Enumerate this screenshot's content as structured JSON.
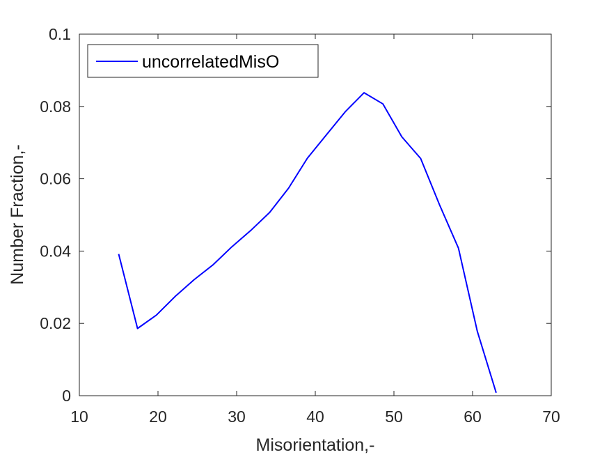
{
  "chart_data": {
    "type": "line",
    "xlabel": "Misorientation,-",
    "ylabel": "Number Fraction,-",
    "xlim": [
      10,
      70
    ],
    "ylim": [
      0,
      0.1
    ],
    "xticks": [
      10,
      20,
      30,
      40,
      50,
      60,
      70
    ],
    "yticks": [
      0,
      0.02,
      0.04,
      0.06,
      0.08,
      0.1
    ],
    "xtick_labels": [
      "10",
      "20",
      "30",
      "40",
      "50",
      "60",
      "70"
    ],
    "ytick_labels": [
      "0",
      "0.02",
      "0.04",
      "0.06",
      "0.08",
      "0.1"
    ],
    "grid": false,
    "legend_position": "top-left",
    "series": [
      {
        "name": "uncorrelatedMisO",
        "color": "#0000ff",
        "x": [
          15.0,
          17.4,
          19.8,
          22.2,
          24.6,
          27.0,
          29.4,
          31.8,
          34.2,
          36.6,
          39.0,
          41.4,
          43.8,
          46.2,
          48.6,
          51.0,
          53.4,
          55.8,
          58.2,
          60.6,
          63.0
        ],
        "y": [
          0.0392,
          0.0186,
          0.0223,
          0.0275,
          0.0321,
          0.0362,
          0.0412,
          0.0457,
          0.0507,
          0.0574,
          0.0657,
          0.0721,
          0.0785,
          0.0838,
          0.0807,
          0.0716,
          0.0656,
          0.0528,
          0.0408,
          0.0178,
          0.0008
        ]
      }
    ]
  }
}
